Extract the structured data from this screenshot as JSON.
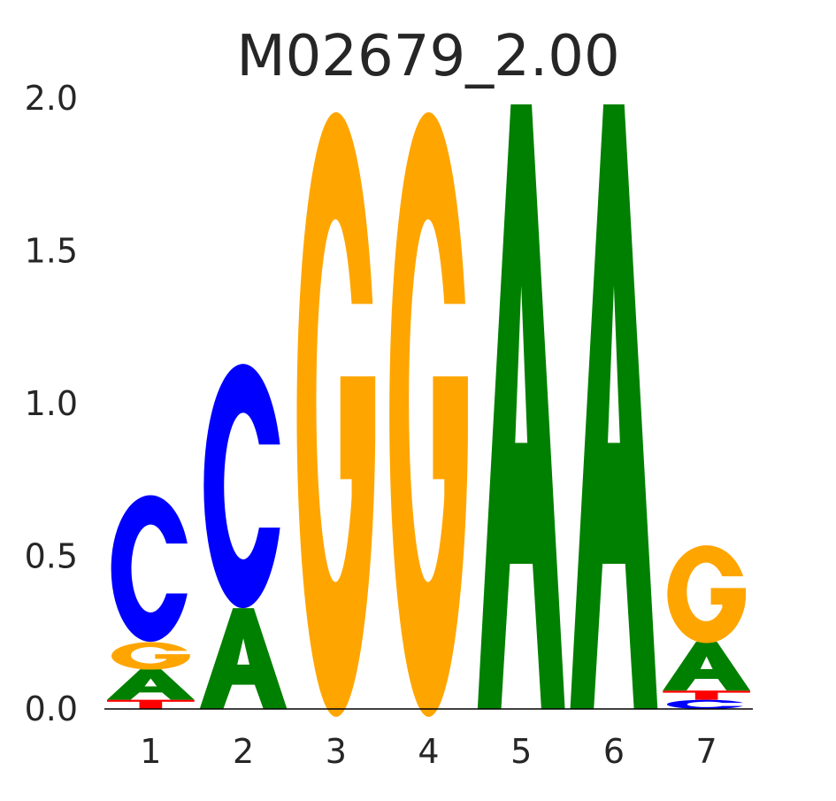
{
  "chart_data": {
    "type": "sequence-logo",
    "title": "M02679_2.00",
    "ylim": [
      0,
      2
    ],
    "y_ticks": [
      "0.0",
      "0.5",
      "1.0",
      "1.5",
      "2.0"
    ],
    "x_ticks": [
      "1",
      "2",
      "3",
      "4",
      "5",
      "6",
      "7"
    ],
    "colors": {
      "A": "#008000",
      "C": "#0000ff",
      "G": "#ffa500",
      "T": "#ff0000"
    },
    "positions": [
      {
        "position": "1",
        "letters": [
          {
            "base": "T",
            "height": 0.03
          },
          {
            "base": "A",
            "height": 0.1
          },
          {
            "base": "G",
            "height": 0.09
          },
          {
            "base": "C",
            "height": 0.48
          }
        ]
      },
      {
        "position": "2",
        "letters": [
          {
            "base": "A",
            "height": 0.33
          },
          {
            "base": "C",
            "height": 0.8
          }
        ]
      },
      {
        "position": "3",
        "letters": [
          {
            "base": "G",
            "height": 1.98
          }
        ]
      },
      {
        "position": "4",
        "letters": [
          {
            "base": "G",
            "height": 1.98
          }
        ]
      },
      {
        "position": "5",
        "letters": [
          {
            "base": "A",
            "height": 1.98
          }
        ]
      },
      {
        "position": "6",
        "letters": [
          {
            "base": "A",
            "height": 1.98
          }
        ]
      },
      {
        "position": "7",
        "letters": [
          {
            "base": "C",
            "height": 0.03
          },
          {
            "base": "T",
            "height": 0.03
          },
          {
            "base": "A",
            "height": 0.16
          },
          {
            "base": "G",
            "height": 0.32
          }
        ]
      }
    ]
  }
}
